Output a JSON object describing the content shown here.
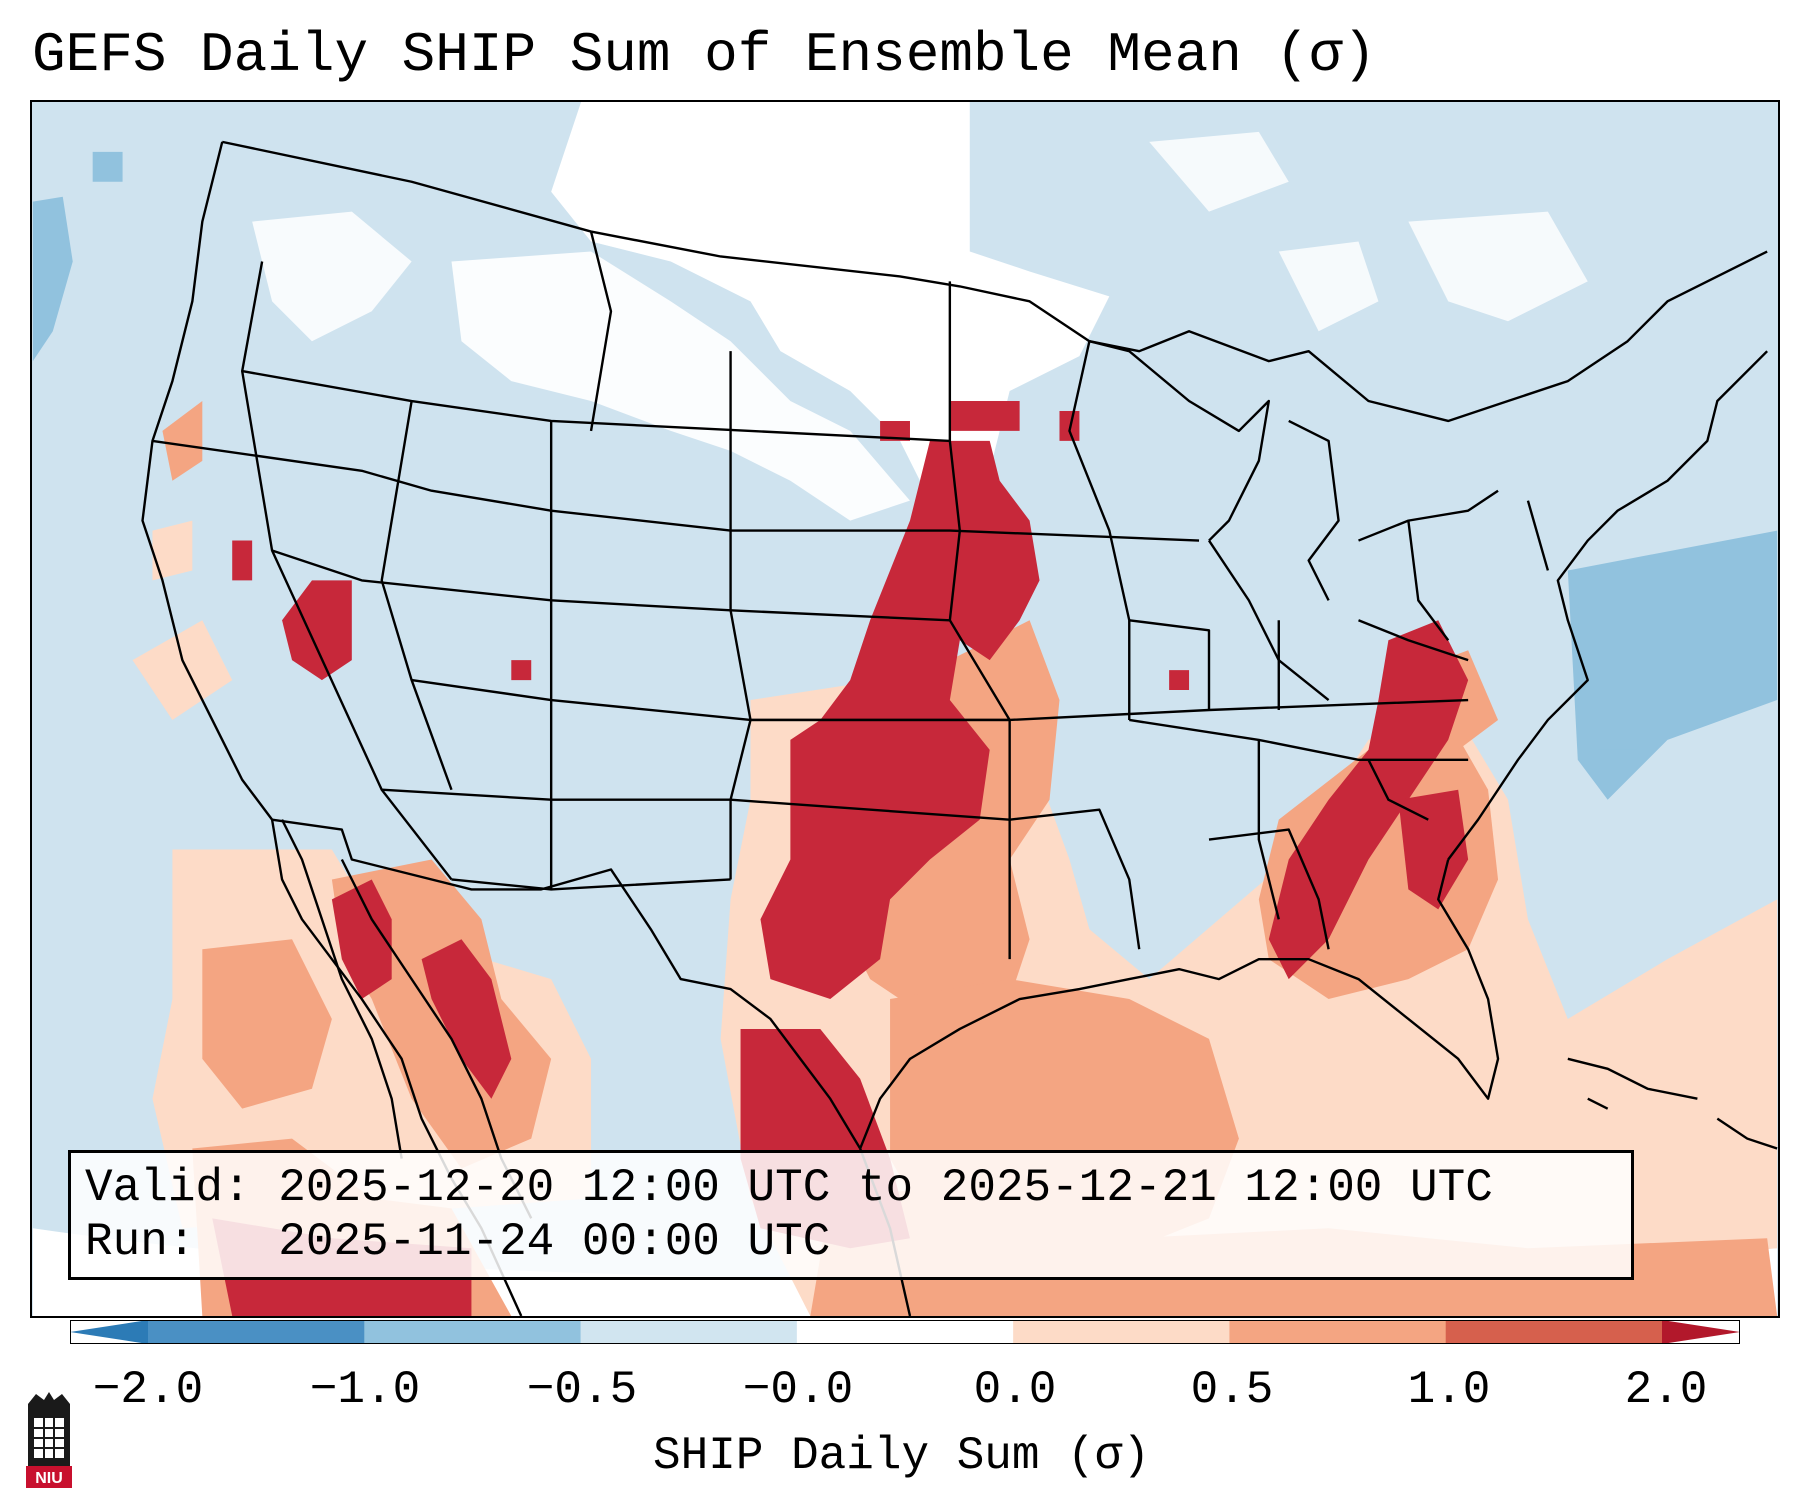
{
  "title": "GEFS Daily SHIP Sum of Ensemble Mean (σ)",
  "info": {
    "valid_line": "Valid: 2025-12-20 12:00 UTC to 2025-12-21 12:00 UTC",
    "run_line": "Run:   2025-11-24 00:00 UTC"
  },
  "colorbar": {
    "label": "SHIP Daily Sum (σ)",
    "ticks": [
      "−2.0",
      "−1.0",
      "−0.5",
      "−0.0",
      "0.0",
      "0.5",
      "1.0",
      "2.0"
    ],
    "colors": [
      "#2c7bb6",
      "#4a90c4",
      "#91c2de",
      "#d1e5f0",
      "#ffffff",
      "#fddbc7",
      "#f4a582",
      "#d6604d",
      "#b2182b"
    ]
  },
  "logo": {
    "icon": "niu-university-logo",
    "text": "NIU"
  }
}
